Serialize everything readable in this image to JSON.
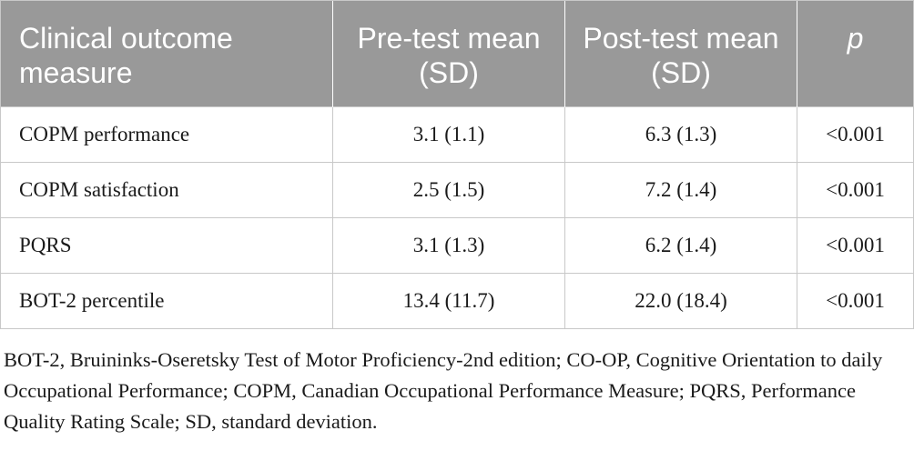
{
  "table": {
    "headers": {
      "col1": "Clinical outcome measure",
      "col2": "Pre-test mean (SD)",
      "col3": "Post-test mean (SD)",
      "col4": "p"
    },
    "rows": [
      {
        "measure": "COPM performance",
        "pre": "3.1 (1.1)",
        "post": "6.3 (1.3)",
        "p": "<0.001"
      },
      {
        "measure": "COPM satisfaction",
        "pre": "2.5 (1.5)",
        "post": "7.2 (1.4)",
        "p": "<0.001"
      },
      {
        "measure": "PQRS",
        "pre": "3.1 (1.3)",
        "post": "6.2 (1.4)",
        "p": "<0.001"
      },
      {
        "measure": "BOT-2 percentile",
        "pre": "13.4 (11.7)",
        "post": "22.0 (18.4)",
        "p": "<0.001"
      }
    ]
  },
  "footnote": "BOT-2, Bruininks-Oseretsky Test of Motor Proficiency-2nd edition; CO-OP, Cognitive Orientation to daily Occupational Performance; COPM, Canadian Occupational Performance Measure; PQRS, Performance Quality Rating Scale; SD, standard deviation.",
  "colors": {
    "header_bg": "#999999",
    "header_text": "#ffffff",
    "grid_line": "#c8c8c8"
  }
}
